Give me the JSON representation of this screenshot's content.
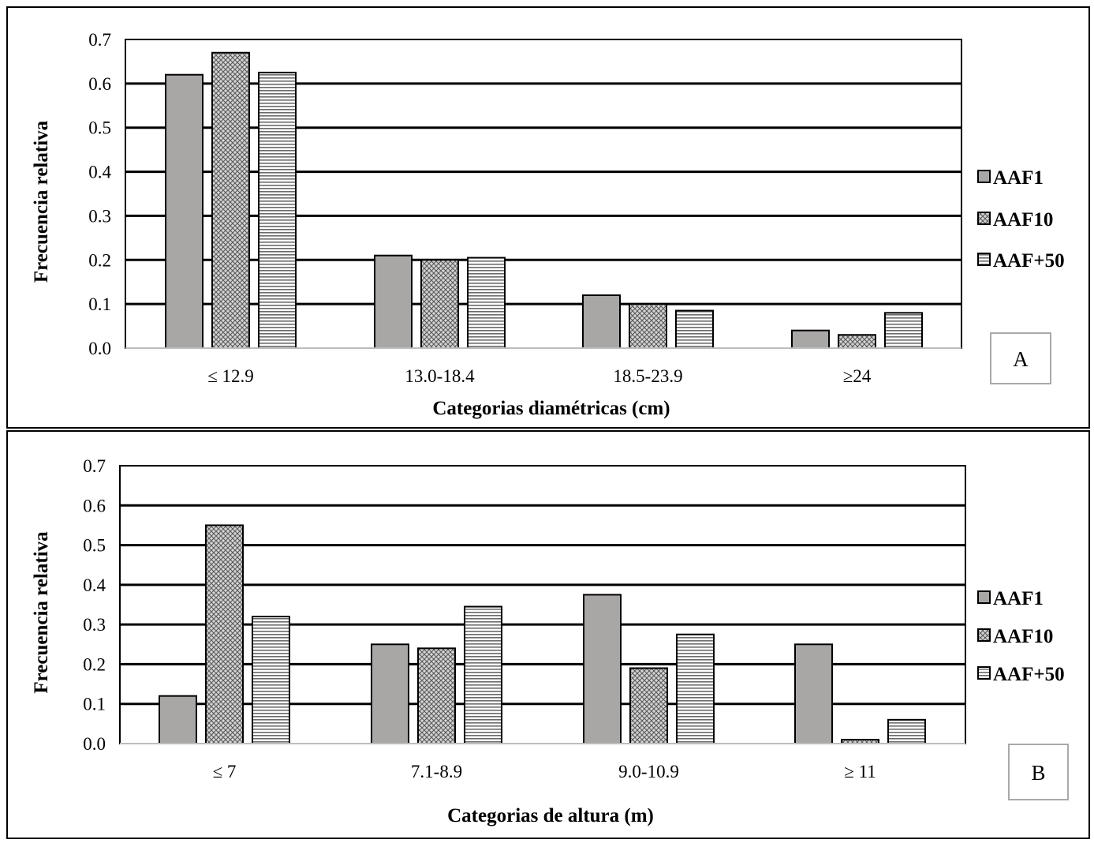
{
  "chart_data": [
    {
      "type": "bar",
      "panel_label": "A",
      "xlabel": "Categorias diamétricas (cm)",
      "ylabel": "Frecuencia relativa",
      "ylim": [
        0,
        0.7
      ],
      "yticks": [
        "0.0",
        "0.1",
        "0.2",
        "0.3",
        "0.4",
        "0.5",
        "0.6",
        "0.7"
      ],
      "categories": [
        "≤ 12.9",
        "13.0-18.4",
        "18.5-23.9",
        "≥24"
      ],
      "series": [
        {
          "name": "AAF1",
          "pattern": "solid",
          "values": [
            0.62,
            0.21,
            0.12,
            0.04
          ]
        },
        {
          "name": "AAF10",
          "pattern": "crosshatch",
          "values": [
            0.67,
            0.2,
            0.1,
            0.03
          ]
        },
        {
          "name": "AAF+50",
          "pattern": "horizontal-lines",
          "values": [
            0.625,
            0.205,
            0.085,
            0.08
          ]
        }
      ],
      "grid": true,
      "legend_position": "right"
    },
    {
      "type": "bar",
      "panel_label": "B",
      "xlabel": "Categorias de altura (m)",
      "ylabel": "Frecuencia relativa",
      "ylim": [
        0,
        0.7
      ],
      "yticks": [
        "0.0",
        "0.1",
        "0.2",
        "0.3",
        "0.4",
        "0.5",
        "0.6",
        "0.7"
      ],
      "categories": [
        "≤ 7",
        "7.1-8.9",
        "9.0-10.9",
        "≥ 11"
      ],
      "series": [
        {
          "name": "AAF1",
          "pattern": "solid",
          "values": [
            0.12,
            0.25,
            0.375,
            0.25
          ]
        },
        {
          "name": "AAF10",
          "pattern": "crosshatch",
          "values": [
            0.55,
            0.24,
            0.19,
            0.01
          ]
        },
        {
          "name": "AAF+50",
          "pattern": "horizontal-lines",
          "values": [
            0.32,
            0.345,
            0.275,
            0.06
          ]
        }
      ],
      "grid": true,
      "legend_position": "right"
    }
  ],
  "colors": {
    "bar_fill": "#a9a6a6",
    "hatch_fill": "#d4d4d4",
    "line_stripe": "#6a6a6a",
    "grid": "#000000",
    "label_box_border": "#a9a9a9"
  }
}
